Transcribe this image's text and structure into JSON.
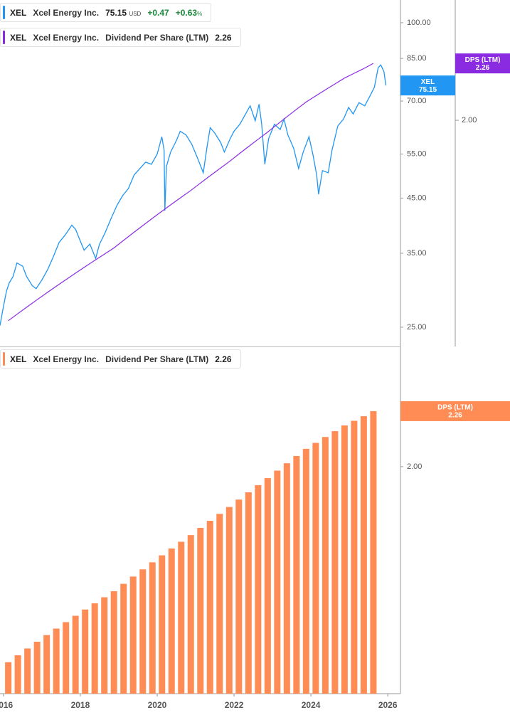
{
  "chart_data": [
    {
      "type": "line",
      "log_scale": true,
      "grid": false,
      "xlim": [
        2015.91,
        2026.33
      ],
      "ylim": [
        22.9,
        110.9
      ],
      "yticks": [
        {
          "value": 100,
          "label": "100.00"
        },
        {
          "value": 85,
          "label": "85.00"
        },
        {
          "value": 70,
          "label": "70.00"
        },
        {
          "value": 55,
          "label": "55.00"
        },
        {
          "value": 45,
          "label": "45.00"
        },
        {
          "value": 35,
          "label": "35.00"
        },
        {
          "value": 25,
          "label": "25.00"
        }
      ],
      "y2lim": [
        1.23,
        2.59
      ],
      "y2ticks": [
        {
          "value": 2,
          "label": "2.00"
        }
      ],
      "series": [
        {
          "ticker": "XEL",
          "name": "Xcel Energy Inc.",
          "color": "#2196f3",
          "currency": "USD",
          "change": "+0.47",
          "change_pct": "+0.63",
          "pct_sign": "%",
          "x": [
            2015.91,
            2016.0,
            2016.08,
            2016.15,
            2016.25,
            2016.35,
            2016.5,
            2016.6,
            2016.75,
            2016.85,
            2017.0,
            2017.15,
            2017.3,
            2017.45,
            2017.6,
            2017.78,
            2017.88,
            2018.0,
            2018.1,
            2018.25,
            2018.4,
            2018.5,
            2018.65,
            2018.8,
            2018.95,
            2019.1,
            2019.25,
            2019.4,
            2019.55,
            2019.7,
            2019.85,
            2020.0,
            2020.12,
            2020.18,
            2020.2,
            2020.24,
            2020.35,
            2020.5,
            2020.6,
            2020.75,
            2020.9,
            2021.05,
            2021.2,
            2021.3,
            2021.38,
            2021.5,
            2021.65,
            2021.75,
            2021.9,
            2022.0,
            2022.15,
            2022.3,
            2022.42,
            2022.55,
            2022.65,
            2022.72,
            2022.8,
            2022.9,
            2023.05,
            2023.2,
            2023.3,
            2023.4,
            2023.55,
            2023.68,
            2023.8,
            2023.95,
            2024.05,
            2024.15,
            2024.2,
            2024.3,
            2024.45,
            2024.55,
            2024.7,
            2024.85,
            2024.98,
            2025.1,
            2025.25,
            2025.4,
            2025.55,
            2025.65,
            2025.75,
            2025.82,
            2025.9,
            2025.95
          ],
          "values": [
            25.2,
            27.5,
            29.5,
            30.6,
            31.5,
            33.5,
            33.0,
            31.5,
            30.2,
            29.8,
            31.0,
            32.5,
            34.5,
            36.8,
            38.0,
            39.8,
            39.0,
            37.0,
            35.5,
            36.5,
            34.2,
            36.5,
            38.5,
            41.0,
            43.5,
            45.5,
            47.0,
            50.0,
            51.5,
            53.0,
            52.5,
            55.0,
            59.5,
            56.0,
            42.5,
            52.0,
            55.5,
            58.5,
            61.0,
            60.0,
            57.5,
            54.0,
            50.5,
            57.0,
            62.0,
            60.5,
            58.0,
            55.5,
            59.0,
            61.0,
            63.0,
            66.0,
            68.5,
            64.0,
            69.0,
            63.0,
            52.5,
            59.0,
            63.0,
            61.5,
            64.5,
            60.0,
            56.5,
            51.5,
            55.5,
            59.5,
            55.0,
            50.0,
            45.8,
            51.0,
            50.5,
            56.0,
            62.5,
            64.5,
            68.0,
            66.0,
            69.5,
            68.5,
            72.0,
            74.5,
            81.5,
            82.5,
            80.0,
            75.15
          ]
        },
        {
          "ticker": "XEL",
          "company": "Xcel Energy Inc.",
          "name": "Dividend Per Share (LTM)",
          "short_name": "DPS (LTM)",
          "color": "#8a2be2",
          "axis": "y2",
          "x": [
            2016.125,
            2016.375,
            2016.625,
            2016.875,
            2017.125,
            2017.375,
            2017.625,
            2017.875,
            2018.125,
            2018.375,
            2018.625,
            2018.875,
            2019.125,
            2019.375,
            2019.625,
            2019.875,
            2020.125,
            2020.375,
            2020.625,
            2020.875,
            2021.125,
            2021.375,
            2021.625,
            2021.875,
            2022.125,
            2022.375,
            2022.625,
            2022.875,
            2023.125,
            2023.375,
            2023.625,
            2023.875,
            2024.125,
            2024.375,
            2024.625,
            2024.875,
            2025.125,
            2025.375,
            2025.625
          ],
          "values": [
            1.3,
            1.32,
            1.34,
            1.36,
            1.38,
            1.4,
            1.42,
            1.44,
            1.46,
            1.48,
            1.5,
            1.52,
            1.545,
            1.57,
            1.595,
            1.62,
            1.645,
            1.67,
            1.695,
            1.72,
            1.7475,
            1.775,
            1.8025,
            1.83,
            1.86,
            1.89,
            1.92,
            1.95,
            1.9825,
            2.015,
            2.0475,
            2.08,
            2.1075,
            2.135,
            2.1625,
            2.19,
            2.2125,
            2.235,
            2.26
          ]
        }
      ]
    },
    {
      "type": "bar",
      "log_scale": true,
      "grid": false,
      "xlim": [
        2015.91,
        2026.33
      ],
      "xticks": [
        2016,
        2018,
        2020,
        2022,
        2024,
        2026
      ],
      "ylim": [
        1.213,
        2.602
      ],
      "yticks": [
        {
          "value": 2,
          "label": "2.00"
        }
      ],
      "series": [
        {
          "ticker": "XEL",
          "company": "Xcel Energy Inc.",
          "name": "Dividend Per Share (LTM)",
          "short_name": "DPS (LTM)",
          "color": "#ff8c55",
          "x": [
            2016.125,
            2016.375,
            2016.625,
            2016.875,
            2017.125,
            2017.375,
            2017.625,
            2017.875,
            2018.125,
            2018.375,
            2018.625,
            2018.875,
            2019.125,
            2019.375,
            2019.625,
            2019.875,
            2020.125,
            2020.375,
            2020.625,
            2020.875,
            2021.125,
            2021.375,
            2021.625,
            2021.875,
            2022.125,
            2022.375,
            2022.625,
            2022.875,
            2023.125,
            2023.375,
            2023.625,
            2023.875,
            2024.125,
            2024.375,
            2024.625,
            2024.875,
            2025.125,
            2025.375,
            2025.625
          ],
          "values": [
            1.3,
            1.32,
            1.34,
            1.36,
            1.38,
            1.4,
            1.42,
            1.44,
            1.46,
            1.48,
            1.5,
            1.52,
            1.545,
            1.57,
            1.595,
            1.62,
            1.645,
            1.67,
            1.695,
            1.72,
            1.7475,
            1.775,
            1.8025,
            1.83,
            1.86,
            1.89,
            1.92,
            1.95,
            1.9825,
            2.015,
            2.0475,
            2.08,
            2.1075,
            2.135,
            2.1625,
            2.19,
            2.2125,
            2.235,
            2.26
          ]
        }
      ]
    }
  ]
}
